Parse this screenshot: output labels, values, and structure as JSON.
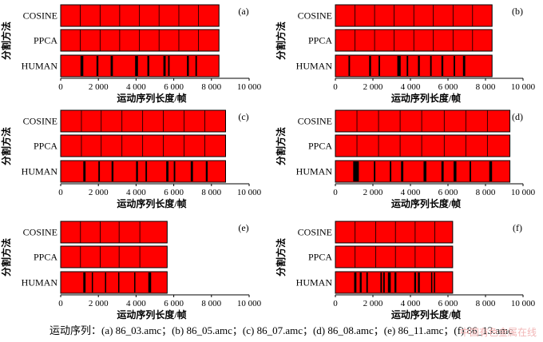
{
  "caption": "运动序列：(a) 86_03.amc；(b) 86_05.amc；(c) 86_07.amc；(d) 86_08.amc；(e) 86_11.amc；(f) 86_13.amc",
  "watermark": "中国有色金属在线",
  "colors": {
    "segment_fill": "#ff0000",
    "boundary": "#000000",
    "frame": "#000000"
  },
  "chart_data": [
    {
      "type": "bar",
      "panel_label": "(a)",
      "categories": [
        "COSINE",
        "PPCA",
        "HUMAN"
      ],
      "xlabel": "运动序列长度/帧",
      "ylabel": "分割方法",
      "xlim": [
        0,
        10000
      ],
      "xticks": [
        0,
        2000,
        4000,
        6000,
        8000,
        10000
      ],
      "xtick_labels": [
        "0",
        "2 000",
        "4 000",
        "6 000",
        "8 000",
        "10 000"
      ],
      "length": 8400,
      "rows": {
        "COSINE": [
          1040,
          2090,
          3130,
          4180,
          5220,
          6270,
          7310
        ],
        "PPCA": [
          1040,
          2090,
          3130,
          4180,
          5220,
          6270,
          7310
        ],
        "HUMAN": [
          {
            "x": 1050,
            "w": 150
          },
          {
            "x": 1900,
            "w": 100
          },
          {
            "x": 2650,
            "w": 120
          },
          {
            "x": 3950,
            "w": 150
          },
          {
            "x": 4600,
            "w": 100
          },
          {
            "x": 5450,
            "w": 120
          },
          {
            "x": 5700,
            "w": 80
          },
          {
            "x": 6700,
            "w": 100
          },
          {
            "x": 7150,
            "w": 80
          }
        ]
      }
    },
    {
      "type": "bar",
      "panel_label": "(b)",
      "categories": [
        "COSINE",
        "PPCA",
        "HUMAN"
      ],
      "xlabel": "运动序列长度/帧",
      "ylabel": "分割方法",
      "xlim": [
        0,
        10000
      ],
      "xticks": [
        0,
        2000,
        4000,
        6000,
        8000,
        10000
      ],
      "xtick_labels": [
        "0",
        "2 000",
        "4 000",
        "6 000",
        "8 000",
        "10 000"
      ],
      "length": 8350,
      "rows": {
        "COSINE": [
          1040,
          2090,
          3130,
          4180,
          5220,
          6270,
          7310
        ],
        "PPCA": [
          1040,
          2090,
          3130,
          4180,
          5220,
          6270,
          7310
        ],
        "HUMAN": [
          {
            "x": 700,
            "w": 80
          },
          {
            "x": 1800,
            "w": 100
          },
          {
            "x": 2300,
            "w": 80
          },
          {
            "x": 3300,
            "w": 180
          },
          {
            "x": 3800,
            "w": 80
          },
          {
            "x": 4400,
            "w": 100
          },
          {
            "x": 5050,
            "w": 80
          },
          {
            "x": 5650,
            "w": 100
          },
          {
            "x": 6300,
            "w": 80
          },
          {
            "x": 6800,
            "w": 120
          }
        ]
      }
    },
    {
      "type": "bar",
      "panel_label": "(c)",
      "categories": [
        "COSINE",
        "PPCA",
        "HUMAN"
      ],
      "xlabel": "运动序列长度/帧",
      "ylabel": "分割方法",
      "xlim": [
        0,
        10000
      ],
      "xticks": [
        0,
        2000,
        4000,
        6000,
        8000,
        10000
      ],
      "xtick_labels": [
        "0",
        "2 000",
        "4 000",
        "6 000",
        "8 000",
        "10 000"
      ],
      "length": 8750,
      "rows": {
        "COSINE": [
          1100,
          2150,
          3250,
          4350,
          5450,
          6550,
          7650
        ],
        "PPCA": [
          1100,
          2150,
          3250,
          4350,
          5450,
          6550,
          7650
        ],
        "HUMAN": [
          {
            "x": 1200,
            "w": 120
          },
          {
            "x": 2000,
            "w": 80
          },
          {
            "x": 2700,
            "w": 100
          },
          {
            "x": 4000,
            "w": 100
          },
          {
            "x": 4500,
            "w": 80
          },
          {
            "x": 5600,
            "w": 120
          },
          {
            "x": 6000,
            "w": 80
          },
          {
            "x": 6900,
            "w": 120
          },
          {
            "x": 7700,
            "w": 100
          }
        ]
      }
    },
    {
      "type": "bar",
      "panel_label": "(d)",
      "categories": [
        "COSINE",
        "PPCA",
        "HUMAN"
      ],
      "xlabel": "运动序列长度/帧",
      "ylabel": "分割方法",
      "xlim": [
        0,
        10000
      ],
      "xticks": [
        0,
        2000,
        4000,
        6000,
        8000,
        10000
      ],
      "xtick_labels": [
        "0",
        "2 000",
        "4 000",
        "6 000",
        "8 000",
        "10 000"
      ],
      "length": 9300,
      "rows": {
        "COSINE": [
          1150,
          2300,
          3450,
          4600,
          5800,
          6950,
          8100
        ],
        "PPCA": [
          1150,
          2300,
          3450,
          4600,
          5800,
          6950,
          8100
        ],
        "HUMAN": [
          {
            "x": 950,
            "w": 300
          },
          {
            "x": 2050,
            "w": 80
          },
          {
            "x": 2900,
            "w": 80
          },
          {
            "x": 3500,
            "w": 120
          },
          {
            "x": 4700,
            "w": 150
          },
          {
            "x": 5650,
            "w": 120
          },
          {
            "x": 6300,
            "w": 150
          },
          {
            "x": 7150,
            "w": 80
          },
          {
            "x": 8200,
            "w": 150
          }
        ]
      }
    },
    {
      "type": "bar",
      "panel_label": "(e)",
      "categories": [
        "COSINE",
        "PPCA",
        "HUMAN"
      ],
      "xlabel": "运动序列长度/帧",
      "ylabel": "分割方法",
      "xlim": [
        0,
        10000
      ],
      "xticks": [
        0,
        2000,
        4000,
        6000,
        8000,
        10000
      ],
      "xtick_labels": [
        "0",
        "2 000",
        "4 000",
        "6 000",
        "8 000",
        "10 000"
      ],
      "length": 5650,
      "rows": {
        "COSINE": [
          1050,
          2100,
          3100,
          4200
        ],
        "PPCA": [
          1050,
          2100,
          3100,
          4200
        ],
        "HUMAN": [
          {
            "x": 1200,
            "w": 120
          },
          {
            "x": 1650,
            "w": 50
          },
          {
            "x": 2350,
            "w": 50
          },
          {
            "x": 3050,
            "w": 50
          },
          {
            "x": 3900,
            "w": 50
          },
          {
            "x": 4650,
            "w": 150
          }
        ]
      }
    },
    {
      "type": "bar",
      "panel_label": "(f)",
      "categories": [
        "COSINE",
        "PPCA",
        "HUMAN"
      ],
      "xlabel": "运动序列长度/帧",
      "ylabel": "分割方法",
      "xlim": [
        0,
        10000
      ],
      "xticks": [
        0,
        2000,
        4000,
        6000,
        8000,
        10000
      ],
      "xtick_labels": [
        "0",
        "2 000",
        "4 000",
        "6 000",
        "8 000",
        "10 000"
      ],
      "length": 6250,
      "rows": {
        "COSINE": [
          1050,
          2150,
          3200,
          4250,
          5300
        ],
        "PPCA": [
          1050,
          2150,
          3200,
          4250,
          5300
        ],
        "HUMAN": [
          {
            "x": 1000,
            "w": 120
          },
          {
            "x": 1300,
            "w": 100
          },
          {
            "x": 1650,
            "w": 80
          },
          {
            "x": 2400,
            "w": 80
          },
          {
            "x": 2550,
            "w": 80
          },
          {
            "x": 2800,
            "w": 150
          },
          {
            "x": 3150,
            "w": 100
          },
          {
            "x": 4200,
            "w": 100
          },
          {
            "x": 4400,
            "w": 100
          },
          {
            "x": 5100,
            "w": 60
          },
          {
            "x": 5250,
            "w": 60
          }
        ]
      }
    }
  ]
}
